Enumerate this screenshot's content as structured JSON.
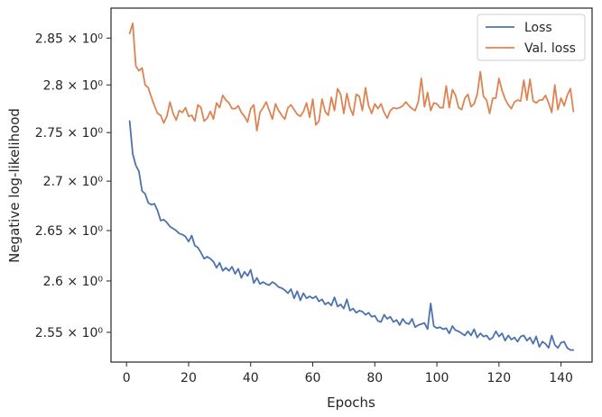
{
  "colors": {
    "loss": "#4c72b0",
    "val_loss": "#dd8452",
    "axes": "#262626",
    "legend_border": "#cccccc"
  },
  "chart_data": {
    "type": "line",
    "title": "",
    "xlabel": "Epochs",
    "ylabel": "Negative log-likelihood",
    "xlim": [
      -5,
      150
    ],
    "ylim": [
      2.5215,
      2.8825
    ],
    "y_scale": "log",
    "x_ticks": [
      0,
      20,
      40,
      60,
      80,
      100,
      120,
      140
    ],
    "x_tick_labels": [
      "0",
      "20",
      "40",
      "60",
      "80",
      "100",
      "120",
      "140"
    ],
    "y_ticks": [
      2.55,
      2.6,
      2.65,
      2.7,
      2.75,
      2.8,
      2.85
    ],
    "y_tick_labels": [
      "2.55 × 10⁰",
      "2.6 × 10⁰",
      "2.65 × 10⁰",
      "2.7 × 10⁰",
      "2.75 × 10⁰",
      "2.8 × 10⁰",
      "2.85 × 10⁰"
    ],
    "grid": false,
    "legend_position": "top-right",
    "x": [
      1,
      2,
      3,
      4,
      5,
      6,
      7,
      8,
      9,
      10,
      11,
      12,
      13,
      14,
      15,
      16,
      17,
      18,
      19,
      20,
      21,
      22,
      23,
      24,
      25,
      26,
      27,
      28,
      29,
      30,
      31,
      32,
      33,
      34,
      35,
      36,
      37,
      38,
      39,
      40,
      41,
      42,
      43,
      44,
      45,
      46,
      47,
      48,
      49,
      50,
      51,
      52,
      53,
      54,
      55,
      56,
      57,
      58,
      59,
      60,
      61,
      62,
      63,
      64,
      65,
      66,
      67,
      68,
      69,
      70,
      71,
      72,
      73,
      74,
      75,
      76,
      77,
      78,
      79,
      80,
      81,
      82,
      83,
      84,
      85,
      86,
      87,
      88,
      89,
      90,
      91,
      92,
      93,
      94,
      95,
      96,
      97,
      98,
      99,
      100,
      101,
      102,
      103,
      104,
      105,
      106,
      107,
      108,
      109,
      110,
      111,
      112,
      113,
      114,
      115,
      116,
      117,
      118,
      119,
      120,
      121,
      122,
      123,
      124,
      125,
      126,
      127,
      128,
      129,
      130,
      131,
      132,
      133,
      134,
      135,
      136,
      137,
      138,
      139,
      140,
      141,
      142,
      143,
      144
    ],
    "series": [
      {
        "name": "Loss",
        "values": [
          2.762,
          2.728,
          2.716,
          2.71,
          2.69,
          2.687,
          2.678,
          2.676,
          2.677,
          2.67,
          2.66,
          2.661,
          2.658,
          2.654,
          2.652,
          2.65,
          2.647,
          2.646,
          2.644,
          2.639,
          2.645,
          2.635,
          2.633,
          2.628,
          2.622,
          2.624,
          2.622,
          2.619,
          2.613,
          2.618,
          2.61,
          2.613,
          2.61,
          2.614,
          2.607,
          2.612,
          2.603,
          2.609,
          2.605,
          2.611,
          2.598,
          2.603,
          2.597,
          2.599,
          2.597,
          2.596,
          2.599,
          2.597,
          2.594,
          2.593,
          2.591,
          2.588,
          2.592,
          2.583,
          2.59,
          2.581,
          2.588,
          2.583,
          2.585,
          2.583,
          2.585,
          2.58,
          2.582,
          2.577,
          2.579,
          2.576,
          2.584,
          2.575,
          2.577,
          2.573,
          2.582,
          2.571,
          2.573,
          2.569,
          2.571,
          2.57,
          2.567,
          2.569,
          2.565,
          2.566,
          2.561,
          2.56,
          2.567,
          2.563,
          2.565,
          2.56,
          2.562,
          2.557,
          2.563,
          2.559,
          2.558,
          2.563,
          2.555,
          2.557,
          2.558,
          2.559,
          2.553,
          2.578,
          2.556,
          2.554,
          2.555,
          2.553,
          2.554,
          2.549,
          2.556,
          2.552,
          2.551,
          2.549,
          2.547,
          2.551,
          2.547,
          2.553,
          2.545,
          2.549,
          2.546,
          2.547,
          2.543,
          2.545,
          2.551,
          2.546,
          2.549,
          2.542,
          2.547,
          2.543,
          2.545,
          2.541,
          2.546,
          2.547,
          2.542,
          2.545,
          2.539,
          2.546,
          2.536,
          2.541,
          2.539,
          2.535,
          2.547,
          2.538,
          2.535,
          2.54,
          2.541,
          2.535,
          2.533,
          2.533
        ]
      },
      {
        "name": "Val. loss",
        "values": [
          2.855,
          2.866,
          2.82,
          2.815,
          2.818,
          2.8,
          2.797,
          2.787,
          2.778,
          2.77,
          2.768,
          2.76,
          2.767,
          2.782,
          2.77,
          2.763,
          2.773,
          2.771,
          2.776,
          2.767,
          2.768,
          2.762,
          2.779,
          2.776,
          2.762,
          2.765,
          2.772,
          2.764,
          2.781,
          2.776,
          2.789,
          2.784,
          2.781,
          2.775,
          2.775,
          2.778,
          2.771,
          2.767,
          2.761,
          2.775,
          2.779,
          2.752,
          2.771,
          2.776,
          2.782,
          2.773,
          2.764,
          2.78,
          2.773,
          2.768,
          2.764,
          2.776,
          2.779,
          2.774,
          2.769,
          2.767,
          2.772,
          2.781,
          2.766,
          2.785,
          2.758,
          2.762,
          2.785,
          2.772,
          2.768,
          2.787,
          2.773,
          2.796,
          2.79,
          2.77,
          2.791,
          2.776,
          2.768,
          2.79,
          2.788,
          2.773,
          2.797,
          2.778,
          2.77,
          2.78,
          2.775,
          2.78,
          2.771,
          2.765,
          2.773,
          2.776,
          2.775,
          2.776,
          2.778,
          2.782,
          2.778,
          2.775,
          2.773,
          2.782,
          2.807,
          2.777,
          2.792,
          2.773,
          2.781,
          2.78,
          2.776,
          2.776,
          2.799,
          2.776,
          2.795,
          2.789,
          2.776,
          2.774,
          2.786,
          2.79,
          2.777,
          2.78,
          2.79,
          2.814,
          2.788,
          2.784,
          2.77,
          2.786,
          2.786,
          2.807,
          2.794,
          2.785,
          2.779,
          2.775,
          2.782,
          2.784,
          2.783,
          2.805,
          2.784,
          2.806,
          2.783,
          2.781,
          2.784,
          2.784,
          2.789,
          2.781,
          2.771,
          2.8,
          2.774,
          2.786,
          2.778,
          2.789,
          2.796,
          2.772
        ]
      }
    ]
  }
}
